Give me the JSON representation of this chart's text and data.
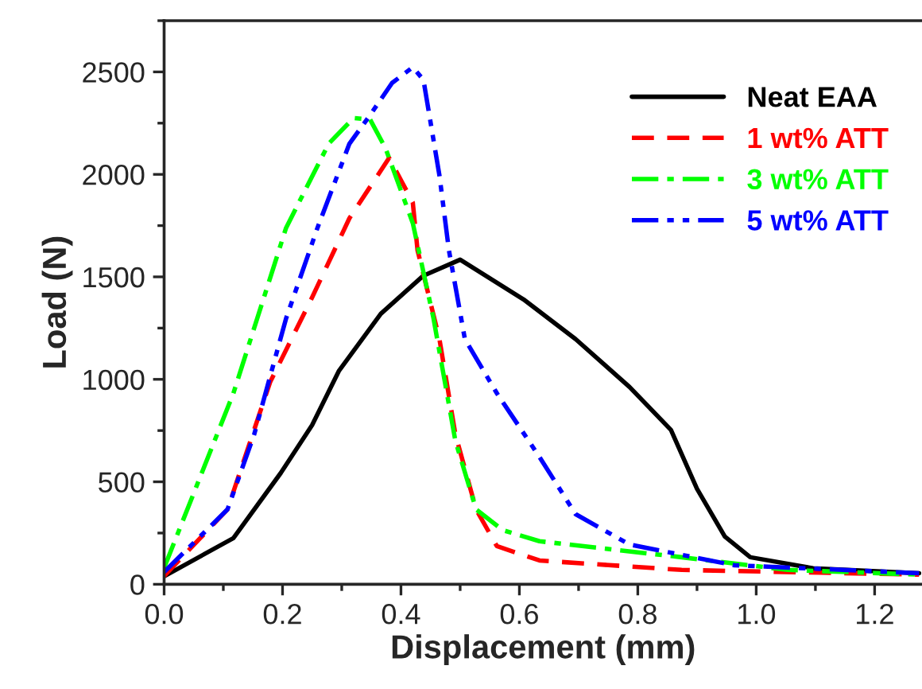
{
  "chart_data": {
    "type": "line",
    "xlabel": "Displacement (mm)",
    "ylabel": "Load (N)",
    "xlim": [
      0,
      1.28
    ],
    "ylim": [
      0,
      2750
    ],
    "xticks": [
      {
        "value": 0,
        "label": "0.0"
      },
      {
        "value": 0.2,
        "label": "0.2"
      },
      {
        "value": 0.4,
        "label": "0.4"
      },
      {
        "value": 0.6,
        "label": "0.6"
      },
      {
        "value": 0.8,
        "label": "0.8"
      },
      {
        "value": 1.0,
        "label": "1.0"
      },
      {
        "value": 1.2,
        "label": "1.2"
      }
    ],
    "yticks": [
      0,
      500,
      1000,
      1500,
      2000,
      2500
    ],
    "grid": false,
    "legend": "top right",
    "marker": "none",
    "series": [
      {
        "name": "Neat EAA",
        "color": "#000000",
        "line_style": "solid",
        "x": [
          0,
          0.117,
          0.197,
          0.25,
          0.295,
          0.366,
          0.438,
          0.5,
          0.607,
          0.695,
          0.786,
          0.856,
          0.9,
          0.947,
          0.99,
          1.096,
          1.275
        ],
        "values": [
          39,
          225,
          543,
          777,
          1040,
          1320,
          1506,
          1584,
          1390,
          1196,
          963,
          753,
          466,
          233,
          132,
          78,
          54
        ]
      },
      {
        "name": "1 wt% ATT",
        "color": "#ff0000",
        "line_style": "dashed",
        "x": [
          0,
          0.107,
          0.179,
          0.25,
          0.313,
          0.38,
          0.42,
          0.428,
          0.465,
          0.492,
          0.527,
          0.562,
          0.634,
          0.874,
          1.275
        ],
        "values": [
          40,
          365,
          986,
          1400,
          1786,
          2080,
          1863,
          1630,
          1196,
          730,
          365,
          186,
          116,
          70,
          47
        ]
      },
      {
        "name": "3 wt% ATT",
        "color": "#00ff00",
        "line_style": "dashdot",
        "x": [
          0,
          0.117,
          0.206,
          0.278,
          0.32,
          0.348,
          0.374,
          0.42,
          0.455,
          0.492,
          0.527,
          0.572,
          0.634,
          0.874,
          1.053,
          1.275
        ],
        "values": [
          80,
          932,
          1739,
          2150,
          2275,
          2267,
          2127,
          1762,
          1297,
          699,
          365,
          264,
          210,
          132,
          70,
          47
        ]
      },
      {
        "name": "5 wt% ATT",
        "color": "#0000ff",
        "line_style": "dashdotdot",
        "x": [
          0,
          0.107,
          0.152,
          0.206,
          0.259,
          0.313,
          0.348,
          0.385,
          0.42,
          0.438,
          0.465,
          0.481,
          0.508,
          0.562,
          0.634,
          0.695,
          0.786,
          0.963,
          1.275
        ],
        "values": [
          60,
          365,
          730,
          1297,
          1739,
          2150,
          2290,
          2446,
          2523,
          2461,
          1995,
          1630,
          1196,
          932,
          621,
          342,
          194,
          93,
          54
        ]
      }
    ]
  }
}
